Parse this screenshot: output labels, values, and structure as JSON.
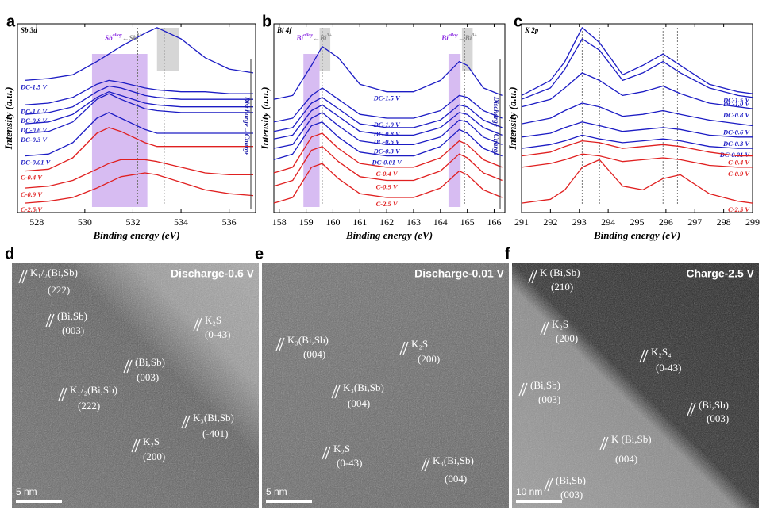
{
  "chart_data": [
    {
      "type": "line",
      "panel": "a",
      "title": "Sb 3d",
      "xlabel": "Binding energy (eV)",
      "ylabel": "Intensity (a.u.)",
      "annotation": [
        "Sb",
        "alloy",
        "←Sb",
        "3+"
      ],
      "arrow_label": "Discharge→Charge",
      "x": [
        527.5,
        528.5,
        529.5,
        530.5,
        531,
        531.5,
        532.5,
        533,
        534,
        535,
        536,
        537
      ],
      "xlim": [
        527.2,
        537.1
      ],
      "xticks": [
        528,
        530,
        532,
        534,
        536
      ],
      "ylim": [
        0,
        100
      ],
      "bands": [
        {
          "x0": 530.3,
          "x1": 532.6,
          "color": "#c9a6ee"
        },
        {
          "x0": 533.0,
          "x1": 533.9,
          "color": "#c8c8c8"
        }
      ],
      "dashed_x": [
        533.3,
        532.2
      ],
      "series": [
        {
          "name": "DC-1.5 V",
          "color": "#1c1cc4",
          "values": [
            70,
            71,
            73,
            80,
            84,
            88,
            95,
            98,
            92,
            82,
            76,
            74
          ]
        },
        {
          "name": "DC-1.0 V",
          "color": "#1c1cc4",
          "values": [
            57,
            58,
            61,
            68,
            70,
            69,
            66,
            65,
            64,
            64,
            63,
            63
          ]
        },
        {
          "name": "DC-0.8 V",
          "color": "#1c1cc4",
          "values": [
            52,
            53,
            56,
            64,
            67,
            66,
            62,
            61,
            60,
            60,
            60,
            60
          ]
        },
        {
          "name": "DC-0.6 V",
          "color": "#1c1cc4",
          "values": [
            47,
            48,
            52,
            61,
            64,
            62,
            58,
            57,
            56,
            56,
            56,
            56
          ]
        },
        {
          "name": "DC-0.3 V",
          "color": "#1c1cc4",
          "values": [
            42,
            43,
            48,
            60,
            63,
            60,
            55,
            54,
            53,
            53,
            53,
            53
          ]
        },
        {
          "name": "DC-0.01 V",
          "color": "#1c1cc4",
          "values": [
            30,
            31,
            37,
            50,
            53,
            50,
            44,
            42,
            42,
            42,
            42,
            42
          ]
        },
        {
          "name": "C-0.4 V",
          "color": "#e02020",
          "values": [
            22,
            23,
            29,
            42,
            45,
            43,
            37,
            35,
            35,
            35,
            35,
            35
          ]
        },
        {
          "name": "C-0.9 V",
          "color": "#e02020",
          "values": [
            13,
            14,
            17,
            23,
            26,
            28,
            28,
            27,
            24,
            21,
            20,
            20
          ]
        },
        {
          "name": "C-2.5 V",
          "color": "#e02020",
          "values": [
            5,
            6,
            8,
            13,
            16,
            19,
            21,
            20,
            16,
            12,
            10,
            9
          ]
        }
      ]
    },
    {
      "type": "line",
      "panel": "b",
      "title": "Bi 4f",
      "xlabel": "Binding energy (eV)",
      "ylabel": "Intensity (a.u.)",
      "annotation": [
        "Bi",
        "alloy",
        "←Bi",
        "3+"
      ],
      "arrow_label": "Discharge→Charge",
      "x": [
        157.8,
        158.5,
        159.2,
        159.6,
        160.2,
        161,
        162,
        163,
        164,
        164.7,
        165,
        165.6,
        166.3
      ],
      "xlim": [
        157.8,
        166.4
      ],
      "xticks": [
        158,
        159,
        160,
        161,
        162,
        163,
        164,
        165,
        166
      ],
      "ylim": [
        0,
        100
      ],
      "bands": [
        {
          "x0": 158.9,
          "x1": 159.5,
          "color": "#c9a6ee"
        },
        {
          "x0": 159.5,
          "x1": 159.9,
          "color": "#c8c8c8"
        },
        {
          "x0": 164.3,
          "x1": 164.75,
          "color": "#c9a6ee"
        },
        {
          "x0": 164.8,
          "x1": 165.2,
          "color": "#c8c8c8"
        }
      ],
      "dashed_x": [
        159.6,
        164.9
      ],
      "series": [
        {
          "name": "DC-1.5 V",
          "color": "#1c1cc4",
          "values": [
            60,
            62,
            78,
            88,
            82,
            68,
            64,
            64,
            70,
            80,
            78,
            66,
            62
          ]
        },
        {
          "name": "DC-1.0 V",
          "color": "#1c1cc4",
          "values": [
            48,
            50,
            62,
            66,
            60,
            52,
            50,
            50,
            54,
            62,
            61,
            54,
            50
          ]
        },
        {
          "name": "DC-0.8 V",
          "color": "#1c1cc4",
          "values": [
            43,
            45,
            58,
            61,
            55,
            47,
            45,
            45,
            49,
            57,
            56,
            49,
            45
          ]
        },
        {
          "name": "DC-0.6 V",
          "color": "#1c1cc4",
          "values": [
            39,
            41,
            54,
            57,
            51,
            43,
            41,
            41,
            45,
            53,
            52,
            45,
            41
          ]
        },
        {
          "name": "DC-0.3 V",
          "color": "#1c1cc4",
          "values": [
            34,
            36,
            50,
            53,
            46,
            38,
            36,
            36,
            40,
            49,
            48,
            40,
            36
          ]
        },
        {
          "name": "DC-0.01 V",
          "color": "#1c1cc4",
          "values": [
            28,
            31,
            46,
            48,
            40,
            32,
            30,
            30,
            35,
            44,
            42,
            34,
            30
          ]
        },
        {
          "name": "C-0.4 V",
          "color": "#e02020",
          "values": [
            21,
            24,
            40,
            42,
            34,
            26,
            24,
            24,
            29,
            38,
            36,
            28,
            24
          ]
        },
        {
          "name": "C-0.9 V",
          "color": "#e02020",
          "values": [
            14,
            17,
            33,
            35,
            27,
            19,
            17,
            17,
            22,
            31,
            29,
            21,
            17
          ]
        },
        {
          "name": "C-2.5 V",
          "color": "#e02020",
          "values": [
            5,
            8,
            24,
            26,
            18,
            10,
            8,
            8,
            13,
            22,
            20,
            12,
            8
          ]
        }
      ]
    },
    {
      "type": "line",
      "panel": "c",
      "title": "K 2p",
      "xlabel": "Binding energy (eV)",
      "ylabel": "Intensity (a.u.)",
      "x": [
        291,
        292,
        292.5,
        293.1,
        293.7,
        294.5,
        295.2,
        295.9,
        296.5,
        297.5,
        298.5,
        299
      ],
      "xlim": [
        291,
        299
      ],
      "xticks": [
        291,
        292,
        293,
        294,
        295,
        296,
        297,
        298,
        299
      ],
      "ylim": [
        0,
        100
      ],
      "bands": [],
      "dashed_x": [
        293.1,
        295.9,
        293.7,
        296.4
      ],
      "series": [
        {
          "name": "DC-1.5 V",
          "color": "#1c1cc4",
          "values": [
            62,
            70,
            80,
            98,
            90,
            73,
            78,
            84,
            78,
            68,
            64,
            63
          ]
        },
        {
          "name": "DC-1.0 V",
          "color": "#1c1cc4",
          "values": [
            60,
            66,
            76,
            92,
            86,
            70,
            74,
            80,
            74,
            66,
            62,
            61
          ]
        },
        {
          "name": "DC-0.8 V",
          "color": "#1c1cc4",
          "values": [
            56,
            60,
            66,
            74,
            70,
            62,
            64,
            67,
            63,
            58,
            56,
            55
          ]
        },
        {
          "name": "DC-0.6 V",
          "color": "#1c1cc4",
          "values": [
            47,
            50,
            54,
            58,
            56,
            51,
            52,
            54,
            52,
            49,
            47,
            46
          ]
        },
        {
          "name": "DC-0.3 V",
          "color": "#1c1cc4",
          "values": [
            40,
            42,
            45,
            48,
            46,
            43,
            44,
            45,
            44,
            41,
            40,
            40
          ]
        },
        {
          "name": "DC-0.01 V",
          "color": "#1c1cc4",
          "values": [
            34,
            36,
            38,
            41,
            39,
            37,
            38,
            39,
            38,
            35,
            34,
            34
          ]
        },
        {
          "name": "C-0.4 V",
          "color": "#e02020",
          "values": [
            30,
            32,
            35,
            38,
            37,
            34,
            35,
            36,
            35,
            32,
            30,
            30
          ]
        },
        {
          "name": "C-0.9 V",
          "color": "#e02020",
          "values": [
            24,
            26,
            28,
            31,
            30,
            27,
            28,
            29,
            28,
            25,
            24,
            24
          ]
        },
        {
          "name": "C-2.5 V",
          "color": "#e02020",
          "values": [
            5,
            7,
            12,
            24,
            28,
            14,
            12,
            18,
            20,
            10,
            6,
            5
          ]
        }
      ]
    }
  ],
  "images": [
    {
      "panel": "d",
      "title": "Discharge-0.6 V",
      "scale": "5 nm",
      "labels": [
        [
          "K₁/₂(Bi,Sb)",
          "(222)"
        ],
        [
          "(Bi,Sb)",
          "(003)"
        ],
        [
          "K₂S",
          "(0-43)"
        ],
        [
          "(Bi,Sb)",
          "(003)"
        ],
        [
          "K₁/₂(Bi,Sb)",
          "(222)"
        ],
        [
          "K₃(Bi,Sb)",
          "(-401)"
        ],
        [
          "K₂S",
          "(200)"
        ]
      ]
    },
    {
      "panel": "e",
      "title": "Discharge-0.01 V",
      "scale": "5 nm",
      "labels": [
        [
          "K₃(Bi,Sb)",
          "(004)"
        ],
        [
          "K₂S",
          "(200)"
        ],
        [
          "K₃(Bi,Sb)",
          "(004)"
        ],
        [
          "K₂S",
          "(0-43)"
        ],
        [
          "K₃(Bi,Sb)",
          "(004)"
        ]
      ]
    },
    {
      "panel": "f",
      "title": "Charge-2.5 V",
      "scale": "10 nm",
      "labels": [
        [
          "K (Bi,Sb)",
          "(210)"
        ],
        [
          "K₂S",
          "(200)"
        ],
        [
          "K₂S₄",
          "(0-43)"
        ],
        [
          "(Bi,Sb)",
          "(003)"
        ],
        [
          "(Bi,Sb)",
          "(003)"
        ],
        [
          "K (Bi,Sb)",
          "(004)"
        ],
        [
          "(Bi,Sb)",
          "(003)"
        ]
      ]
    }
  ]
}
